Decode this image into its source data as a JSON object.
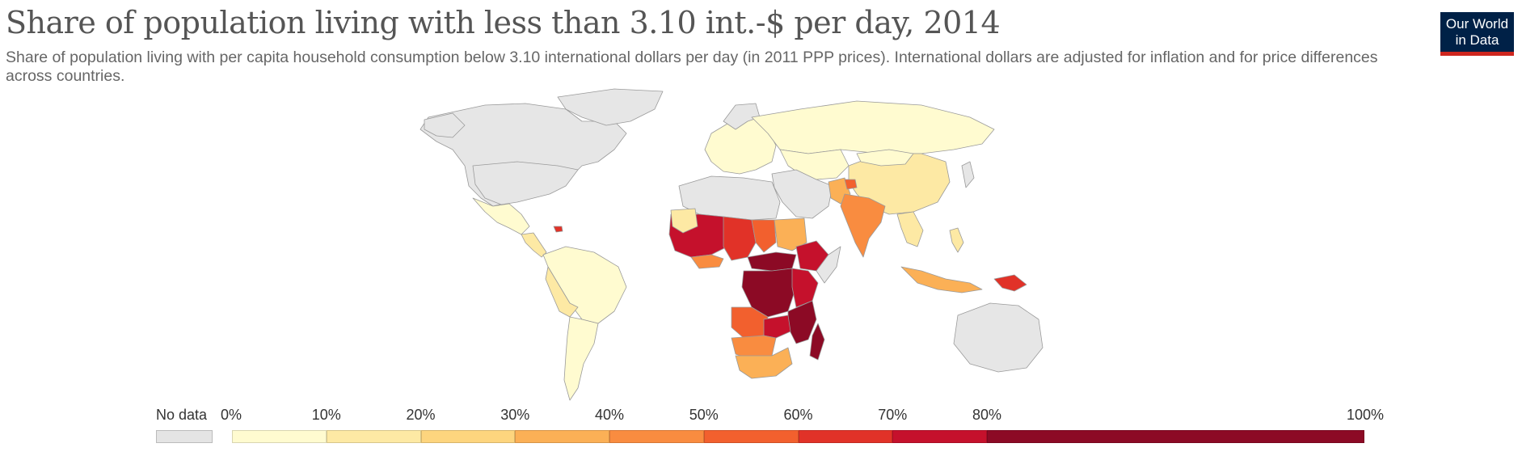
{
  "title": "Share of population living with less than 3.10 int.-$ per day, 2014",
  "subtitle": "Share of population living with per capita household consumption below 3.10 international dollars per day (in 2011 PPP prices). International dollars are adjusted for inflation and for price differences across countries.",
  "logo": {
    "line1": "Our World",
    "line2": "in Data"
  },
  "legend": {
    "no_data_label": "No data",
    "ticks": [
      "0%",
      "10%",
      "20%",
      "30%",
      "40%",
      "50%",
      "60%",
      "70%",
      "80%",
      "100%"
    ],
    "bin_edges": [
      0,
      10,
      20,
      30,
      40,
      50,
      60,
      70,
      80,
      100
    ],
    "colors": [
      "#fffbd0",
      "#fde9a4",
      "#fdd57e",
      "#fbb056",
      "#f98c40",
      "#f2602e",
      "#e13228",
      "#c5112c",
      "#8c0a25"
    ],
    "no_data_color": "#e4e4e4"
  },
  "map_colors": {
    "ocean": "#ffffff",
    "border": "#9a9a9a",
    "no_data": "#e6e6e6"
  }
}
